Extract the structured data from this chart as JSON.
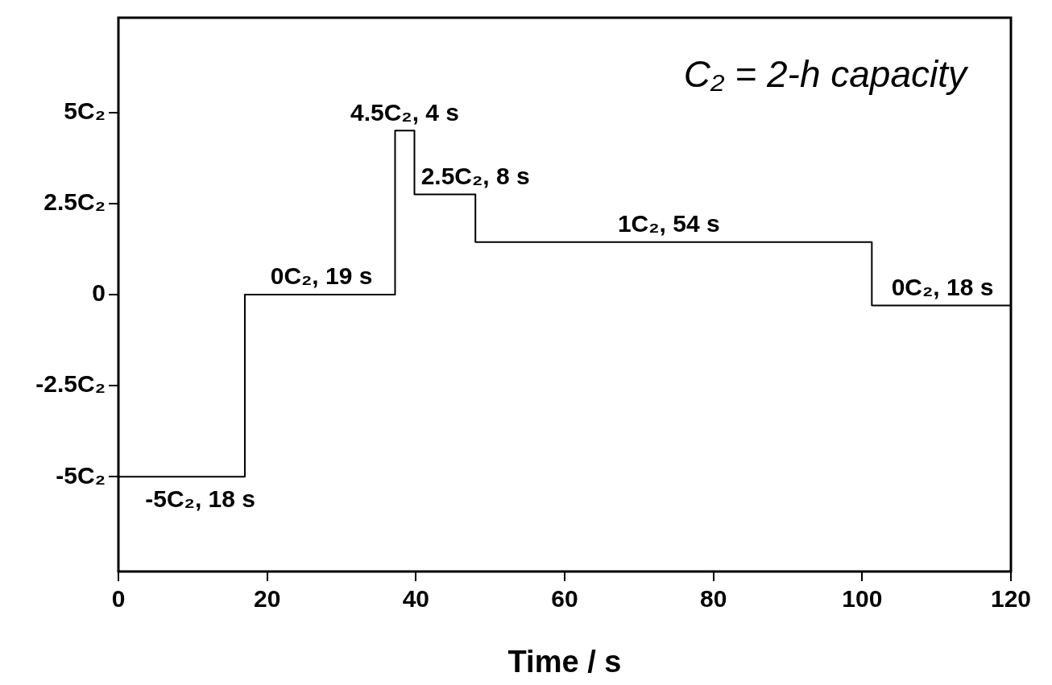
{
  "chart_data": {
    "type": "step",
    "xlabel": "Time / s",
    "x": [
      0,
      17,
      37.2,
      39.8,
      48,
      101.3,
      120
    ],
    "values": [
      -5,
      0,
      4.5,
      2.75,
      1.44,
      -0.3,
      -0.3
    ],
    "color": "#000000",
    "xlim": [
      0,
      120
    ],
    "xticks": [
      0,
      20,
      40,
      60,
      80,
      100,
      120
    ],
    "ylim": [
      -7.6,
      7.6
    ],
    "yticks": [
      {
        "value": -5,
        "label": "-5C₂"
      },
      {
        "value": -2.5,
        "label": "-2.5C₂"
      },
      {
        "value": 0,
        "label": "0"
      },
      {
        "value": 2.5,
        "label": "2.5C₂"
      },
      {
        "value": 5,
        "label": "5C₂"
      }
    ],
    "grid": false,
    "legend": false,
    "marker": "none",
    "line_style": "solid",
    "annotations": [
      "C₂ = 2-h capacity",
      {
        "text": "-5C₂, 18 s",
        "x": 11,
        "y": -5
      },
      {
        "text": "0C₂, 19 s",
        "x": 27.3,
        "y": 0
      },
      {
        "text": "4.5C₂, 4 s",
        "x": 38.5,
        "y": 4.5
      },
      {
        "text": "2.5C₂, 8 s",
        "x": 48,
        "y": 2.75
      },
      {
        "text": "1C₂, 54 s",
        "x": 74,
        "y": 1.44
      },
      {
        "text": "0C₂, 18 s",
        "x": 110.8,
        "y": -0.3
      }
    ]
  }
}
